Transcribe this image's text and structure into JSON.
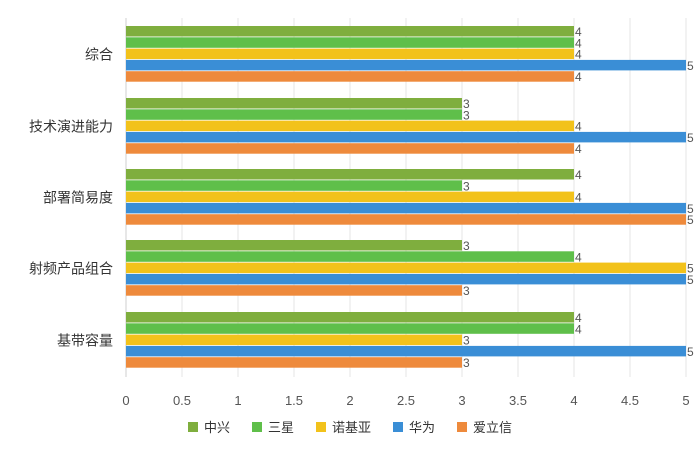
{
  "chart_data": {
    "type": "bar",
    "orientation": "horizontal",
    "categories": [
      "综合",
      "技术演进能力",
      "部署简易度",
      "射频产品组合",
      "基带容量"
    ],
    "series": [
      {
        "name": "中兴",
        "color": "#7fae3e",
        "values": [
          4,
          3,
          4,
          3,
          4
        ]
      },
      {
        "name": "三星",
        "color": "#5fbf4a",
        "values": [
          4,
          3,
          3,
          4,
          4
        ]
      },
      {
        "name": "诺基亚",
        "color": "#f2c21b",
        "values": [
          4,
          4,
          4,
          5,
          3
        ]
      },
      {
        "name": "华为",
        "color": "#3a8ed6",
        "values": [
          5,
          5,
          5,
          5,
          5
        ]
      },
      {
        "name": "爱立信",
        "color": "#ee8a3c",
        "values": [
          4,
          4,
          5,
          3,
          3
        ]
      }
    ],
    "xlim": [
      0,
      5
    ],
    "xticks": [
      "0",
      "0.5",
      "1",
      "1.5",
      "2",
      "2.5",
      "3",
      "3.5",
      "4",
      "4.5",
      "5"
    ],
    "xtick_values": [
      0,
      0.5,
      1,
      1.5,
      2,
      2.5,
      3,
      3.5,
      4,
      4.5,
      5
    ],
    "grid": true,
    "legend_position": "bottom",
    "title": "",
    "xlabel": "",
    "ylabel": ""
  }
}
